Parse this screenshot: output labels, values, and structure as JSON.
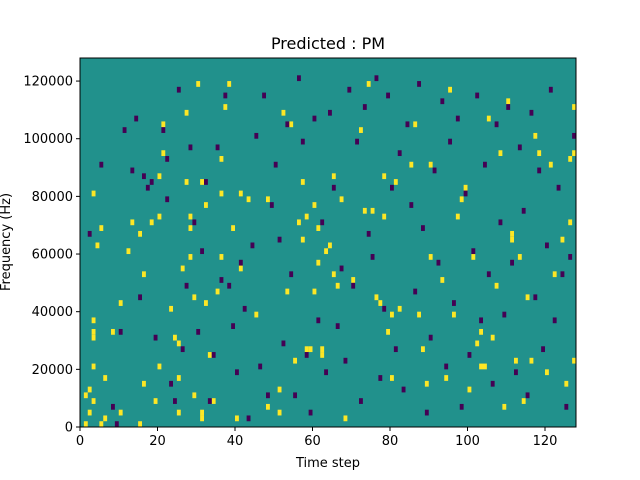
{
  "chart_data": {
    "type": "heatmap",
    "title": "Predicted : PM",
    "xlabel": "Time step",
    "ylabel": "Frequency (Hz)",
    "xlim": [
      0,
      128
    ],
    "ylim": [
      0,
      128000
    ],
    "x_ticks": [
      0,
      20,
      40,
      60,
      80,
      100,
      120
    ],
    "y_ticks": [
      0,
      20000,
      40000,
      60000,
      80000,
      100000,
      120000
    ],
    "y_tick_labels": [
      "0",
      "20000",
      "40000",
      "60000",
      "80000",
      "100000",
      "120000"
    ],
    "grid": false,
    "legend": "none",
    "value_levels": {
      "low": -1,
      "background": 0,
      "high": 1
    },
    "colors": {
      "background": "#21918c",
      "high": "#fde725",
      "low": "#440154"
    },
    "matrix_shape": {
      "time_steps": 128,
      "frequency_bins": 64,
      "bin_width_hz": 2000
    },
    "high_cells": [
      [
        1,
        0
      ],
      [
        1,
        5
      ],
      [
        2,
        6
      ],
      [
        2,
        2
      ],
      [
        3,
        4
      ],
      [
        3,
        10
      ],
      [
        3,
        15
      ],
      [
        3,
        16
      ],
      [
        3,
        18
      ],
      [
        3,
        40
      ],
      [
        4,
        31
      ],
      [
        5,
        34
      ],
      [
        5,
        0
      ],
      [
        6,
        1
      ],
      [
        6,
        8
      ],
      [
        8,
        16
      ],
      [
        10,
        2
      ],
      [
        10,
        21
      ],
      [
        12,
        30
      ],
      [
        13,
        35
      ],
      [
        15,
        0
      ],
      [
        15,
        33
      ],
      [
        16,
        7
      ],
      [
        16,
        26
      ],
      [
        18,
        35
      ],
      [
        19,
        4
      ],
      [
        20,
        36
      ],
      [
        20,
        43
      ],
      [
        20,
        10
      ],
      [
        21,
        47
      ],
      [
        21,
        52
      ],
      [
        23,
        20
      ],
      [
        24,
        15
      ],
      [
        25,
        8
      ],
      [
        25,
        2
      ],
      [
        25,
        14
      ],
      [
        26,
        27
      ],
      [
        27,
        42
      ],
      [
        27,
        54
      ],
      [
        28,
        34
      ],
      [
        28,
        36
      ],
      [
        28,
        29
      ],
      [
        29,
        5
      ],
      [
        29,
        22
      ],
      [
        30,
        59
      ],
      [
        31,
        2
      ],
      [
        31,
        1
      ],
      [
        31,
        42
      ],
      [
        32,
        21
      ],
      [
        32,
        38
      ],
      [
        33,
        12
      ],
      [
        34,
        4
      ],
      [
        35,
        23
      ],
      [
        36,
        29
      ],
      [
        36,
        46
      ],
      [
        36,
        40
      ],
      [
        37,
        55
      ],
      [
        38,
        59
      ],
      [
        39,
        34
      ],
      [
        40,
        1
      ],
      [
        41,
        40
      ],
      [
        41,
        27
      ],
      [
        43,
        39
      ],
      [
        45,
        19
      ],
      [
        48,
        39
      ],
      [
        48,
        3
      ],
      [
        51,
        2
      ],
      [
        51,
        6
      ],
      [
        52,
        54
      ],
      [
        53,
        23
      ],
      [
        54,
        52
      ],
      [
        55,
        11
      ],
      [
        56,
        35
      ],
      [
        57,
        42
      ],
      [
        57,
        32
      ],
      [
        58,
        13
      ],
      [
        58,
        36
      ],
      [
        59,
        13
      ],
      [
        60,
        38
      ],
      [
        60,
        23
      ],
      [
        61,
        28
      ],
      [
        61,
        34
      ],
      [
        62,
        12
      ],
      [
        62,
        13
      ],
      [
        63,
        30
      ],
      [
        64,
        31
      ],
      [
        65,
        26
      ],
      [
        65,
        43
      ],
      [
        66,
        24
      ],
      [
        67,
        39
      ],
      [
        68,
        1
      ],
      [
        70,
        25
      ],
      [
        72,
        51
      ],
      [
        73,
        37
      ],
      [
        74,
        59
      ],
      [
        75,
        37
      ],
      [
        76,
        22
      ],
      [
        77,
        21
      ],
      [
        78,
        43
      ],
      [
        78,
        36
      ],
      [
        79,
        16
      ],
      [
        80,
        19
      ],
      [
        80,
        8
      ],
      [
        81,
        42
      ],
      [
        82,
        20
      ],
      [
        85,
        45
      ],
      [
        86,
        52
      ],
      [
        87,
        19
      ],
      [
        88,
        13
      ],
      [
        89,
        7
      ],
      [
        90,
        45
      ],
      [
        90,
        29
      ],
      [
        93,
        25
      ],
      [
        94,
        8
      ],
      [
        95,
        58
      ],
      [
        96,
        19
      ],
      [
        97,
        36
      ],
      [
        98,
        39
      ],
      [
        99,
        41
      ],
      [
        100,
        6
      ],
      [
        101,
        29
      ],
      [
        102,
        14
      ],
      [
        103,
        10
      ],
      [
        103,
        16
      ],
      [
        104,
        10
      ],
      [
        105,
        53
      ],
      [
        106,
        15
      ],
      [
        107,
        24
      ],
      [
        108,
        47
      ],
      [
        109,
        3
      ],
      [
        110,
        56
      ],
      [
        111,
        32
      ],
      [
        111,
        33
      ],
      [
        112,
        11
      ],
      [
        113,
        29
      ],
      [
        114,
        4
      ],
      [
        115,
        22
      ],
      [
        116,
        11
      ],
      [
        117,
        50
      ],
      [
        118,
        47
      ],
      [
        120,
        9
      ],
      [
        121,
        45
      ],
      [
        122,
        26
      ],
      [
        124,
        32
      ],
      [
        125,
        7
      ],
      [
        126,
        35
      ],
      [
        126,
        46
      ],
      [
        127,
        11
      ],
      [
        127,
        47
      ],
      [
        127,
        55
      ]
    ],
    "low_cells": [
      [
        2,
        33
      ],
      [
        5,
        45
      ],
      [
        8,
        3
      ],
      [
        9,
        0
      ],
      [
        10,
        16
      ],
      [
        11,
        51
      ],
      [
        13,
        44
      ],
      [
        14,
        53
      ],
      [
        15,
        22
      ],
      [
        16,
        43
      ],
      [
        17,
        41
      ],
      [
        18,
        42
      ],
      [
        19,
        15
      ],
      [
        21,
        51
      ],
      [
        22,
        46
      ],
      [
        22,
        39
      ],
      [
        23,
        7
      ],
      [
        24,
        4
      ],
      [
        25,
        58
      ],
      [
        26,
        13
      ],
      [
        27,
        24
      ],
      [
        28,
        48
      ],
      [
        29,
        35
      ],
      [
        30,
        16
      ],
      [
        31,
        30
      ],
      [
        32,
        42
      ],
      [
        33,
        4
      ],
      [
        34,
        12
      ],
      [
        35,
        48
      ],
      [
        36,
        25
      ],
      [
        37,
        57
      ],
      [
        38,
        24
      ],
      [
        39,
        17
      ],
      [
        40,
        9
      ],
      [
        41,
        28
      ],
      [
        42,
        20
      ],
      [
        43,
        1
      ],
      [
        44,
        31
      ],
      [
        45,
        50
      ],
      [
        46,
        10
      ],
      [
        47,
        57
      ],
      [
        48,
        5
      ],
      [
        49,
        38
      ],
      [
        50,
        45
      ],
      [
        51,
        32
      ],
      [
        52,
        14
      ],
      [
        53,
        52
      ],
      [
        54,
        26
      ],
      [
        55,
        5
      ],
      [
        56,
        60
      ],
      [
        57,
        49
      ],
      [
        58,
        12
      ],
      [
        59,
        2
      ],
      [
        60,
        53
      ],
      [
        61,
        18
      ],
      [
        62,
        35
      ],
      [
        63,
        9
      ],
      [
        64,
        54
      ],
      [
        65,
        41
      ],
      [
        66,
        17
      ],
      [
        67,
        27
      ],
      [
        68,
        11
      ],
      [
        69,
        58
      ],
      [
        70,
        24
      ],
      [
        71,
        49
      ],
      [
        72,
        4
      ],
      [
        73,
        55
      ],
      [
        74,
        33
      ],
      [
        75,
        29
      ],
      [
        76,
        60
      ],
      [
        77,
        8
      ],
      [
        78,
        20
      ],
      [
        79,
        57
      ],
      [
        80,
        41
      ],
      [
        81,
        13
      ],
      [
        82,
        47
      ],
      [
        83,
        6
      ],
      [
        84,
        52
      ],
      [
        85,
        38
      ],
      [
        86,
        23
      ],
      [
        87,
        59
      ],
      [
        88,
        34
      ],
      [
        89,
        2
      ],
      [
        90,
        15
      ],
      [
        91,
        44
      ],
      [
        92,
        28
      ],
      [
        93,
        56
      ],
      [
        94,
        10
      ],
      [
        95,
        49
      ],
      [
        96,
        21
      ],
      [
        97,
        53
      ],
      [
        98,
        3
      ],
      [
        99,
        40
      ],
      [
        100,
        12
      ],
      [
        101,
        30
      ],
      [
        102,
        57
      ],
      [
        103,
        18
      ],
      [
        104,
        45
      ],
      [
        105,
        26
      ],
      [
        106,
        7
      ],
      [
        107,
        52
      ],
      [
        108,
        35
      ],
      [
        109,
        19
      ],
      [
        110,
        55
      ],
      [
        111,
        28
      ],
      [
        112,
        9
      ],
      [
        113,
        48
      ],
      [
        114,
        37
      ],
      [
        115,
        5
      ],
      [
        116,
        54
      ],
      [
        117,
        22
      ],
      [
        118,
        44
      ],
      [
        119,
        13
      ],
      [
        120,
        31
      ],
      [
        121,
        58
      ],
      [
        122,
        18
      ],
      [
        123,
        41
      ],
      [
        124,
        26
      ],
      [
        125,
        3
      ],
      [
        126,
        29
      ],
      [
        127,
        50
      ]
    ]
  }
}
